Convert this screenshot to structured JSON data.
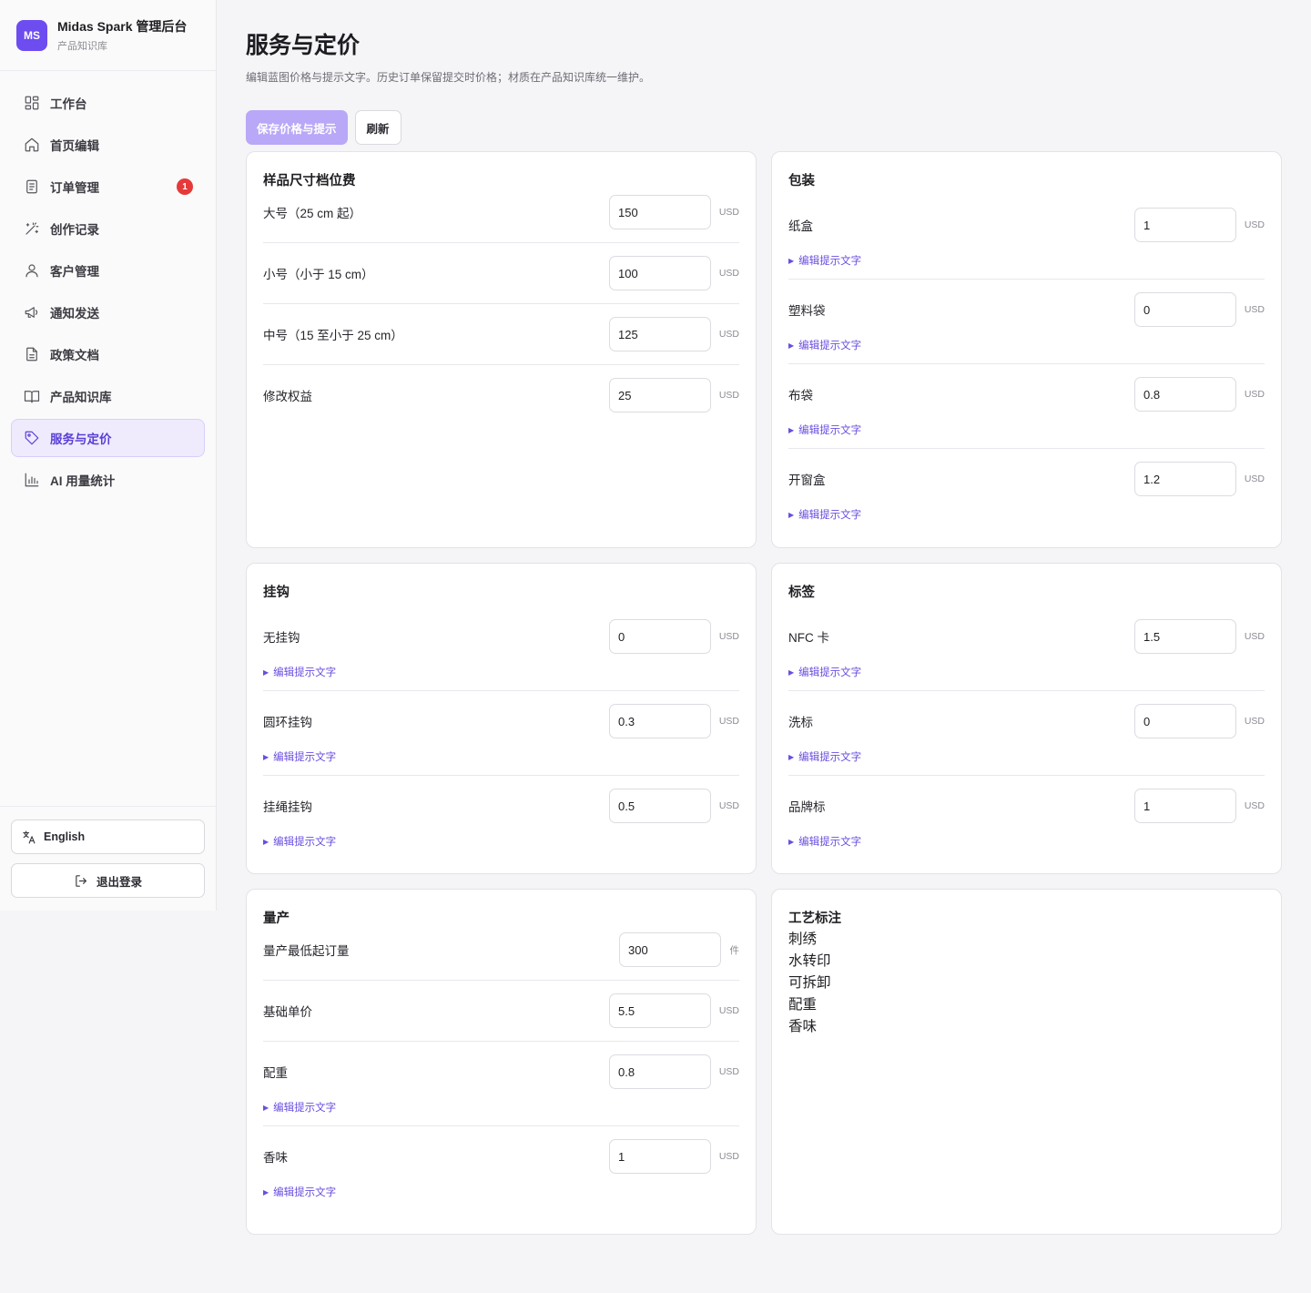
{
  "brand": {
    "logo": "MS",
    "title": "Midas Spark 管理后台",
    "subtitle": "产品知识库"
  },
  "nav": [
    {
      "label": "工作台",
      "icon": "dashboard-icon"
    },
    {
      "label": "首页编辑",
      "icon": "home-icon"
    },
    {
      "label": "订单管理",
      "icon": "order-icon",
      "badge": "1"
    },
    {
      "label": "创作记录",
      "icon": "magic-wand-icon"
    },
    {
      "label": "客户管理",
      "icon": "user-icon"
    },
    {
      "label": "通知发送",
      "icon": "megaphone-icon"
    },
    {
      "label": "政策文档",
      "icon": "document-icon"
    },
    {
      "label": "产品知识库",
      "icon": "book-icon"
    },
    {
      "label": "服务与定价",
      "icon": "tag-icon",
      "active": true
    },
    {
      "label": "AI 用量统计",
      "icon": "bar-chart-icon"
    }
  ],
  "sidebar_footer": {
    "language_label": "English",
    "logout_label": "退出登录"
  },
  "page": {
    "title": "服务与定价",
    "description": "编辑蓝图价格与提示文字。历史订单保留提交时价格；材质在产品知识库统一维护。",
    "save_label": "保存价格与提示",
    "refresh_label": "刷新"
  },
  "hint_label": "编辑提示文字",
  "unit_usd": "USD",
  "sample_size": {
    "title": "样品尺寸档位费",
    "rows": [
      {
        "label": "大号（25 cm 起）",
        "value": "150"
      },
      {
        "label": "小号（小于 15 cm）",
        "value": "100"
      },
      {
        "label": "中号（15 至小于 25 cm）",
        "value": "125"
      },
      {
        "label": "修改权益",
        "value": "25"
      }
    ]
  },
  "packaging": {
    "title": "包装",
    "rows": [
      {
        "label": "纸盒",
        "value": "1"
      },
      {
        "label": "塑料袋",
        "value": "0"
      },
      {
        "label": "布袋",
        "value": "0.8"
      },
      {
        "label": "开窗盒",
        "value": "1.2"
      }
    ]
  },
  "hook": {
    "title": "挂钩",
    "rows": [
      {
        "label": "无挂钩",
        "value": "0"
      },
      {
        "label": "圆环挂钩",
        "value": "0.3"
      },
      {
        "label": "挂绳挂钩",
        "value": "0.5"
      }
    ]
  },
  "tag": {
    "title": "标签",
    "rows": [
      {
        "label": "NFC 卡",
        "value": "1.5"
      },
      {
        "label": "洗标",
        "value": "0"
      },
      {
        "label": "品牌标",
        "value": "1"
      }
    ]
  },
  "mass_production": {
    "title": "量产",
    "moq": {
      "label": "量产最低起订量",
      "value": "300",
      "unit": "件"
    },
    "base_price": {
      "label": "基础单价",
      "value": "5.5"
    },
    "rows": [
      {
        "label": "配重",
        "value": "0.8"
      },
      {
        "label": "香味",
        "value": "1"
      }
    ]
  },
  "craft_notes": {
    "title": "工艺标注",
    "items": [
      "刺绣",
      "水转印",
      "可拆卸",
      "配重",
      "香味"
    ]
  },
  "colors": {
    "accent": "#6d4cf0",
    "active_bg": "#efebfd",
    "badge": "#e5393a",
    "primary_button": "#b9a7f7"
  }
}
